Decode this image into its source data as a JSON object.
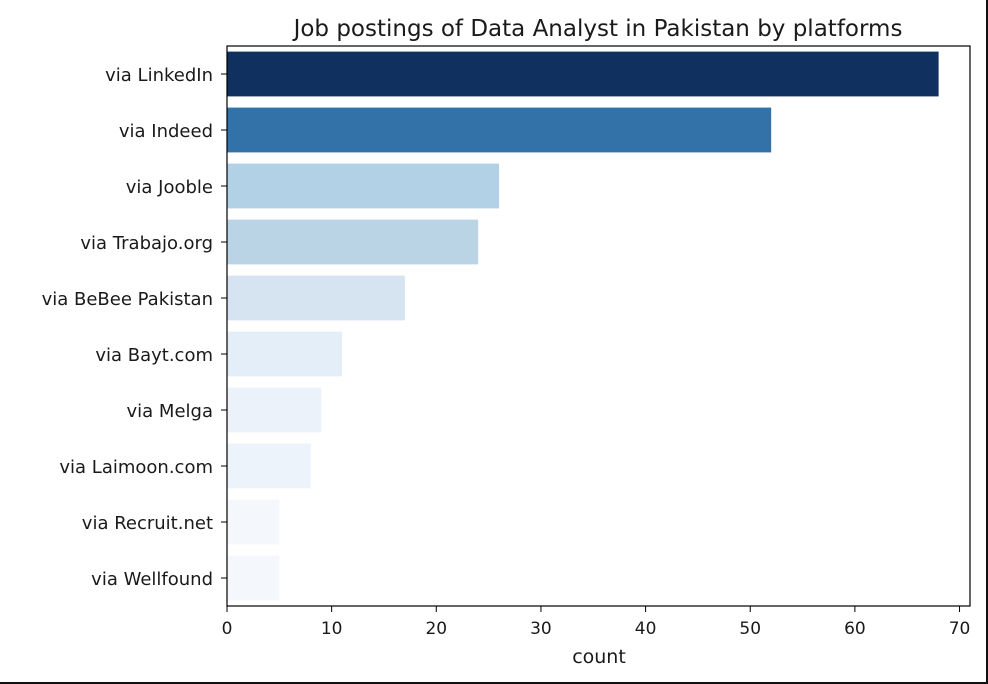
{
  "chart_data": {
    "type": "bar",
    "orientation": "horizontal",
    "title": "Job postings of Data Analyst in Pakistan by platforms",
    "xlabel": "count",
    "ylabel": "",
    "categories": [
      "via LinkedIn",
      "via Indeed",
      "via Jooble",
      "via Trabajo.org",
      "via BeBee Pakistan",
      "via Bayt.com",
      "via Melga",
      "via Laimoon.com",
      "via Recruit.net",
      "via Wellfound"
    ],
    "values": [
      68,
      52,
      26,
      24,
      17,
      11,
      9,
      8,
      5,
      5
    ],
    "colors": [
      "#10305f",
      "#3372a8",
      "#b3d1e6",
      "#bad4e6",
      "#d6e3f0",
      "#e4eef8",
      "#ebf2fa",
      "#edf3fb",
      "#f4f8fd",
      "#f4f8fd"
    ],
    "xlim": [
      0,
      71
    ],
    "xticks": [
      0,
      10,
      20,
      30,
      40,
      50,
      60,
      70
    ],
    "grid": false,
    "legend": "none"
  }
}
